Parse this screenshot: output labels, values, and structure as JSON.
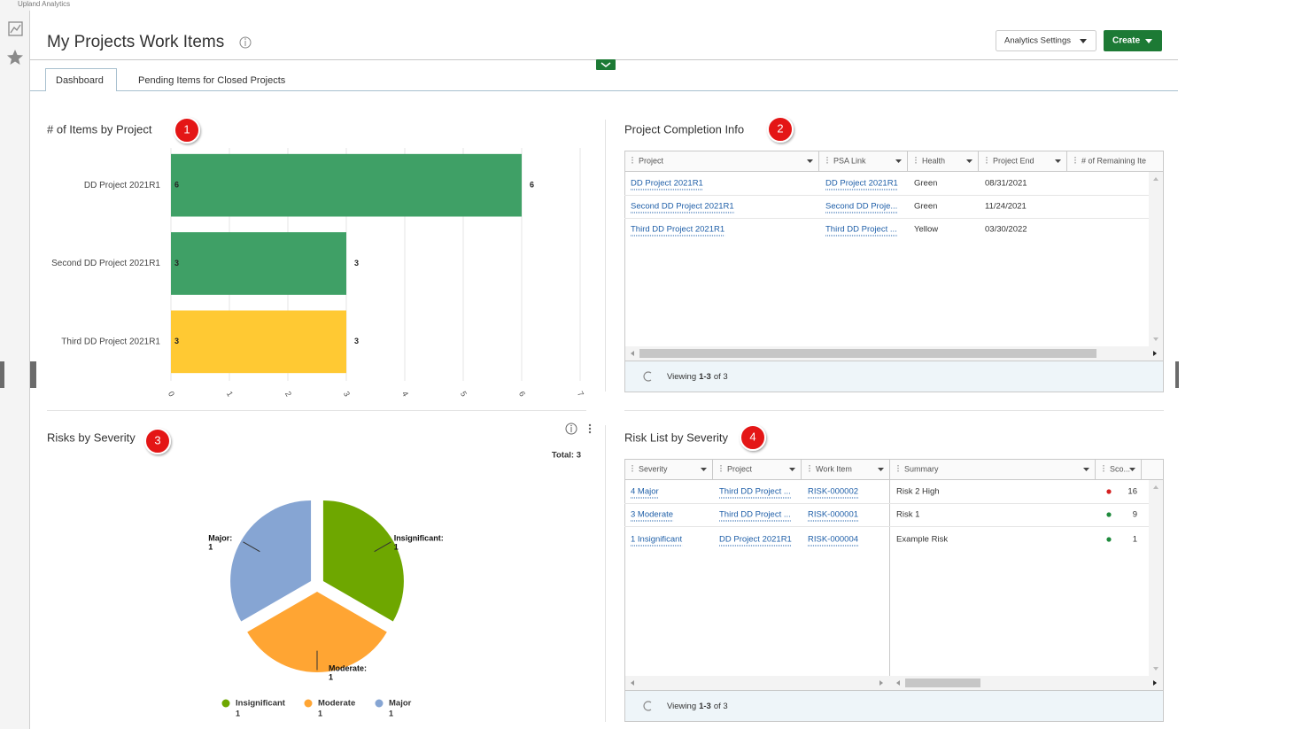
{
  "app_name": "Upland Analytics",
  "header": {
    "title": "My Projects Work Items",
    "buttons": [
      "Analytics Settings",
      "Create"
    ]
  },
  "tabs": [
    "Dashboard",
    "Pending Items for Closed Projects"
  ],
  "chart_data": [
    {
      "type": "bar",
      "orientation": "horizontal",
      "title": "# of Items by Project",
      "badge": "1",
      "categories": [
        "DD Project 2021R1",
        "Second DD Project 2021R1",
        "Third DD Project 2021R1"
      ],
      "values": [
        6,
        3,
        3
      ],
      "colors": [
        "#3fa066",
        "#3fa066",
        "#ffc933"
      ],
      "xlim": [
        0,
        7
      ],
      "xticks": [
        0,
        1,
        2,
        3,
        4,
        5,
        6,
        7
      ],
      "grid": true
    },
    {
      "type": "pie",
      "title": "Risks by Severity",
      "badge": "3",
      "total_label": "Total: 3",
      "categories": [
        "Insignificant",
        "Moderate",
        "Major"
      ],
      "slice_labels": [
        "Insignificant:",
        "Moderate:",
        "Major:"
      ],
      "values": [
        1,
        1,
        1
      ],
      "colors": [
        "#6ea700",
        "#ffa533",
        "#86a5d3"
      ]
    }
  ],
  "tables": [
    {
      "title": "Project Completion Info",
      "badge": "2",
      "columns": [
        "Project",
        "PSA Link",
        "Health",
        "Project End",
        "# of Remaining Ite"
      ],
      "rows": [
        [
          "DD Project 2021R1",
          "DD Project 2021R1",
          "Green",
          "08/31/2021"
        ],
        [
          "Second DD Project 2021R1",
          "Second DD Proje...",
          "Green",
          "11/24/2021"
        ],
        [
          "Third DD Project 2021R1",
          "Third DD Project ...",
          "Yellow",
          "03/30/2022"
        ]
      ],
      "footer": [
        "Viewing",
        "1-3",
        "of 3"
      ]
    },
    {
      "title": "Risk List by Severity",
      "badge": "4",
      "columns": [
        "Severity",
        "Project",
        "Work Item",
        "Summary",
        "Sco..."
      ],
      "rows": [
        [
          "4 Major",
          "Third DD Project ...",
          "RISK-000002",
          "Risk 2 High",
          "16"
        ],
        [
          "3 Moderate",
          "Third DD Project ...",
          "RISK-000001",
          "Risk 1",
          "9"
        ],
        [
          "1 Insignificant",
          "DD Project 2021R1",
          "RISK-000004",
          "Example Risk",
          "1"
        ]
      ],
      "status_colors": [
        "#d42020",
        "#1e8a3c",
        "#1e8a3c"
      ],
      "footer": [
        "Viewing",
        "1-3",
        "of 3"
      ]
    }
  ]
}
